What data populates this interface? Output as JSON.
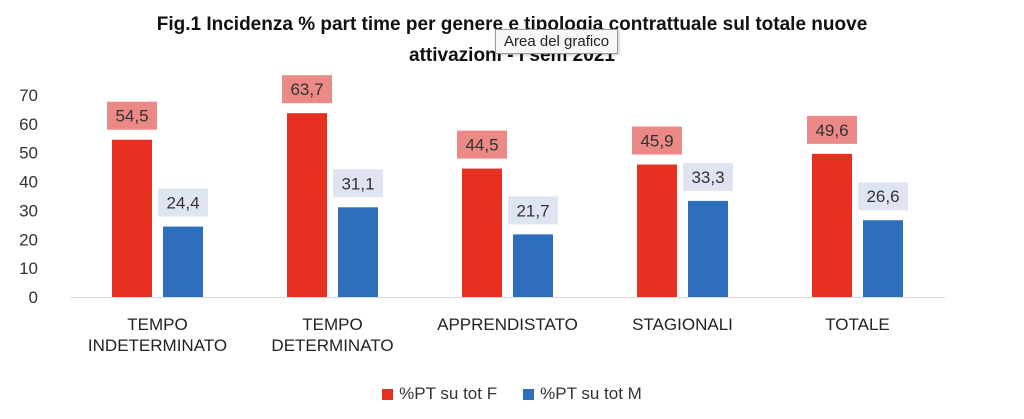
{
  "title_lines": [
    "Fig.1 Incidenza % part time per genere e tipologia contrattuale sul totale nuove",
    "attivazioni - I sem 2021"
  ],
  "tooltip": "Area del grafico",
  "colors": {
    "F": "#e7301f",
    "M": "#2e6fbd",
    "F_label_bg": "#eb8987",
    "M_label_bg": "#dee4f1",
    "axis": "#d9d9d9"
  },
  "chart_data": {
    "type": "bar",
    "categories": [
      [
        "TEMPO",
        "INDETERMINATO"
      ],
      [
        "TEMPO",
        "DETERMINATO"
      ],
      [
        "APPRENDISTATO"
      ],
      [
        "STAGIONALI"
      ],
      [
        "TOTALE"
      ]
    ],
    "series": [
      {
        "name": "%PT su tot F",
        "values": [
          54.5,
          63.7,
          44.5,
          45.9,
          49.6
        ],
        "labels": [
          "54,5",
          "63,7",
          "44,5",
          "45,9",
          "49,6"
        ]
      },
      {
        "name": "%PT su tot M",
        "values": [
          24.4,
          31.1,
          21.7,
          33.3,
          26.6
        ],
        "labels": [
          "24,4",
          "31,1",
          "21,7",
          "33,3",
          "26,6"
        ]
      }
    ],
    "ylim": [
      0,
      70
    ],
    "yticks": [
      0,
      10,
      20,
      30,
      40,
      50,
      60,
      70
    ],
    "grid": false,
    "legend_position": "bottom"
  }
}
